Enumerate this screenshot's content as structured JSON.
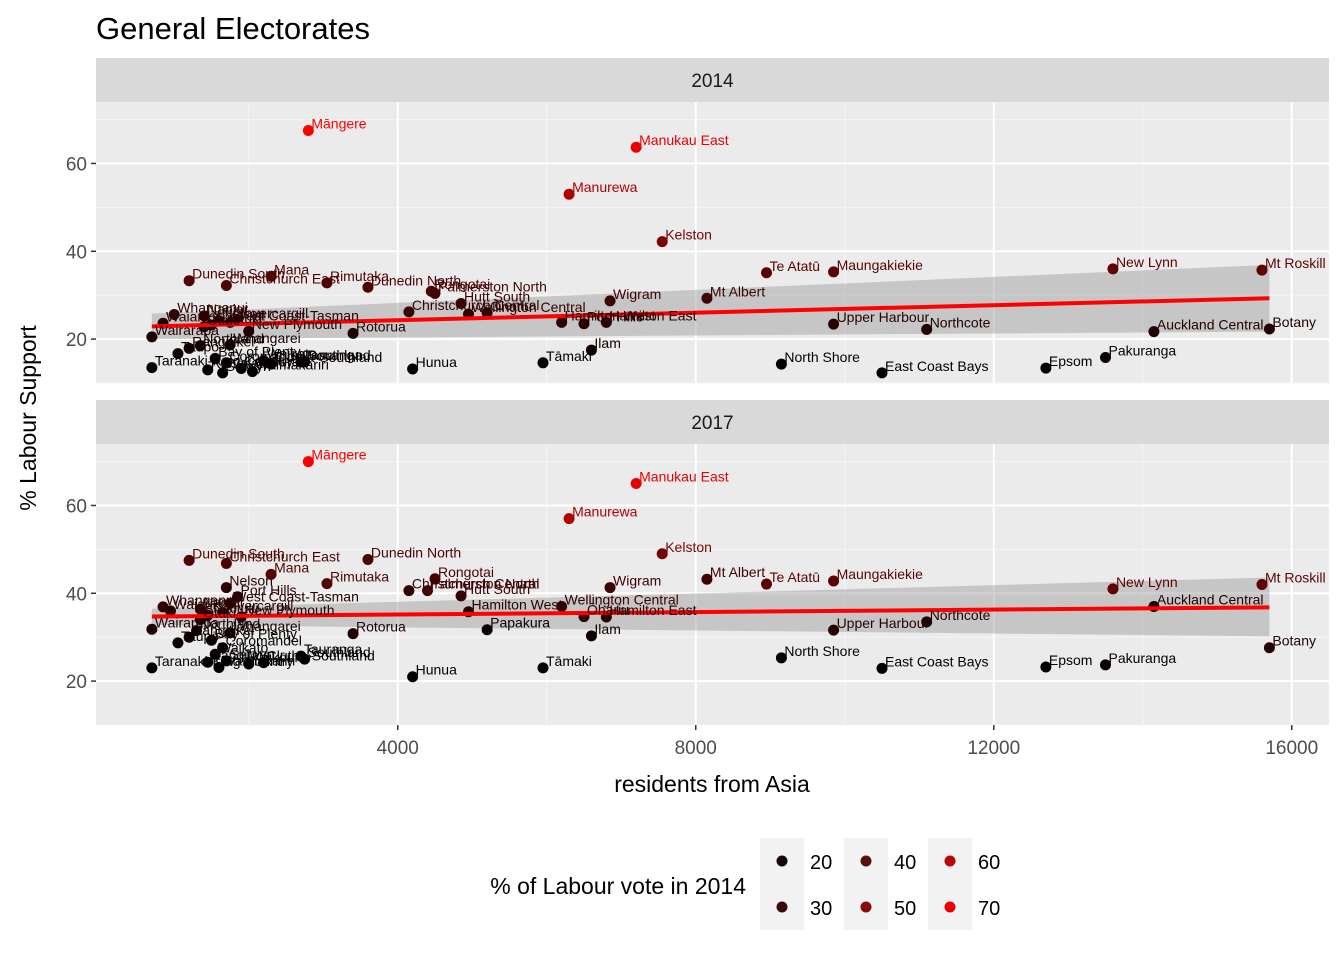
{
  "chart_data": {
    "type": "scatter",
    "title": "General Electorates",
    "xlabel": "residents from Asia",
    "ylabel": "% Labour Support",
    "xlim": [
      -50,
      16500
    ],
    "ylim": [
      10,
      74
    ],
    "x_ticks": [
      "4000",
      "8000",
      "12000",
      "16000"
    ],
    "x_tick_values": [
      4000,
      8000,
      12000,
      16000
    ],
    "y_ticks": [
      "20",
      "40",
      "60"
    ],
    "y_tick_values": [
      20,
      40,
      60
    ],
    "grid": true,
    "legend": {
      "title": "% of Labour vote in 2014",
      "placement": "bottom",
      "entries": [
        {
          "label": "20",
          "color": "#170606"
        },
        {
          "label": "30",
          "color": "#3b0b0b"
        },
        {
          "label": "40",
          "color": "#5e0d0d"
        },
        {
          "label": "50",
          "color": "#8a0b0b"
        },
        {
          "label": "60",
          "color": "#b80505"
        },
        {
          "label": "70",
          "color": "#ee0000"
        }
      ]
    },
    "color_scale": {
      "low": "#000000",
      "high": "#ff0000",
      "min": 12.6,
      "max": 68
    },
    "panels": [
      {
        "strip": "2014",
        "trend": {
          "x": [
            700,
            15700
          ],
          "y": [
            22.9,
            29.3
          ],
          "band_upper": [
            25.8,
            36.9
          ],
          "band_lower": [
            20.0,
            21.7
          ]
        },
        "points": [
          {
            "label": "Māngere",
            "x": 2800,
            "y": 67.5,
            "c": 67.5
          },
          {
            "label": "Manukau East",
            "x": 7200,
            "y": 63.7,
            "c": 63.7
          },
          {
            "label": "Manurewa",
            "x": 6300,
            "y": 53.0,
            "c": 53.0
          },
          {
            "label": "Kelston",
            "x": 7550,
            "y": 42.2,
            "c": 42.2
          },
          {
            "label": "Te Atatū",
            "x": 8950,
            "y": 35.1,
            "c": 35.1
          },
          {
            "label": "Maungakiekie",
            "x": 9850,
            "y": 35.3,
            "c": 35.3
          },
          {
            "label": "New Lynn",
            "x": 13600,
            "y": 36.0,
            "c": 36.0
          },
          {
            "label": "Mt Roskill",
            "x": 15600,
            "y": 35.7,
            "c": 35.7
          },
          {
            "label": "Mt Albert",
            "x": 8150,
            "y": 29.3,
            "c": 29.3
          },
          {
            "label": "Wigram",
            "x": 6850,
            "y": 28.7,
            "c": 28.7
          },
          {
            "label": "Dunedin South",
            "x": 1200,
            "y": 33.3,
            "c": 33.3
          },
          {
            "label": "Mana",
            "x": 2300,
            "y": 34.3,
            "c": 34.3
          },
          {
            "label": "Christchurch East",
            "x": 1700,
            "y": 32.2,
            "c": 32.2
          },
          {
            "label": "Rimutaka",
            "x": 3050,
            "y": 32.8,
            "c": 32.8
          },
          {
            "label": "Dunedin North",
            "x": 3600,
            "y": 31.8,
            "c": 31.8
          },
          {
            "label": "Rongotai",
            "x": 4450,
            "y": 30.9,
            "c": 30.9
          },
          {
            "label": "Palmerston North",
            "x": 4500,
            "y": 30.4,
            "c": 30.4
          },
          {
            "label": "Hutt South",
            "x": 4850,
            "y": 28.1,
            "c": 28.1
          },
          {
            "label": "Christchurch Central",
            "x": 4150,
            "y": 26.2,
            "c": 26.2
          },
          {
            "label": "Wellington Central",
            "x": 4950,
            "y": 25.7,
            "c": 25.7
          },
          {
            "label": "Ōhariu",
            "x": 5200,
            "y": 26.0,
            "c": 26.0
          },
          {
            "label": "Hamilton West",
            "x": 6200,
            "y": 23.8,
            "c": 23.8
          },
          {
            "label": "Port Hills",
            "x": 6500,
            "y": 23.5,
            "c": 23.5
          },
          {
            "label": "Hamilton East",
            "x": 6800,
            "y": 23.8,
            "c": 23.8
          },
          {
            "label": "Upper Harbour",
            "x": 9850,
            "y": 23.4,
            "c": 23.4
          },
          {
            "label": "Northcote",
            "x": 11100,
            "y": 22.2,
            "c": 22.2
          },
          {
            "label": "Auckland Central",
            "x": 14150,
            "y": 21.7,
            "c": 21.7
          },
          {
            "label": "Botany",
            "x": 15700,
            "y": 22.3,
            "c": 22.3
          },
          {
            "label": "Napier",
            "x": 1400,
            "y": 25.3,
            "c": 25.3
          },
          {
            "label": "Nelson",
            "x": 1600,
            "y": 24.2,
            "c": 24.2
          },
          {
            "label": "Whanganui",
            "x": 1000,
            "y": 25.6,
            "c": 25.6
          },
          {
            "label": "Invercargill",
            "x": 1850,
            "y": 24.4,
            "c": 24.4
          },
          {
            "label": "West Coast-Tasman",
            "x": 1750,
            "y": 23.8,
            "c": 23.8
          },
          {
            "label": "Tukituki",
            "x": 1500,
            "y": 23.2,
            "c": 23.2
          },
          {
            "label": "Ōtaki",
            "x": 1400,
            "y": 22.8,
            "c": 22.8
          },
          {
            "label": "New Plymouth",
            "x": 2000,
            "y": 21.8,
            "c": 21.8
          },
          {
            "label": "Rotorua",
            "x": 3400,
            "y": 21.3,
            "c": 21.3
          },
          {
            "label": "Waiariki",
            "x": 850,
            "y": 23.6,
            "c": 23.6
          },
          {
            "label": "Wairarapa",
            "x": 700,
            "y": 20.5,
            "c": 20.5
          },
          {
            "label": "Whangarei",
            "x": 1750,
            "y": 18.7,
            "c": 18.7
          },
          {
            "label": "Northland",
            "x": 1350,
            "y": 18.5,
            "c": 18.5
          },
          {
            "label": "Rangitīkei",
            "x": 1200,
            "y": 17.9,
            "c": 17.9
          },
          {
            "label": "Taupō",
            "x": 1050,
            "y": 16.7,
            "c": 16.7
          },
          {
            "label": "Bay of Plenty",
            "x": 1550,
            "y": 15.6,
            "c": 15.6
          },
          {
            "label": "Coromandel",
            "x": 1700,
            "y": 14.6,
            "c": 14.6
          },
          {
            "label": "Waikato",
            "x": 2200,
            "y": 15.1,
            "c": 15.1
          },
          {
            "label": "Tauranga",
            "x": 2700,
            "y": 14.8,
            "c": 14.8
          },
          {
            "label": "Clutha-Southland",
            "x": 2300,
            "y": 14.3,
            "c": 14.3
          },
          {
            "label": "Southland",
            "x": 2750,
            "y": 14.8,
            "c": 14.8
          },
          {
            "label": "Rangitata",
            "x": 1450,
            "y": 13.0,
            "c": 13.0
          },
          {
            "label": "Selwyn",
            "x": 1650,
            "y": 12.3,
            "c": 12.3
          },
          {
            "label": "Kaikōura",
            "x": 1900,
            "y": 13.3,
            "c": 13.3
          },
          {
            "label": "Waimakariri",
            "x": 2050,
            "y": 12.6,
            "c": 12.6
          },
          {
            "label": "Taranaki-King Country",
            "x": 700,
            "y": 13.5,
            "c": 13.5
          },
          {
            "label": "Hunua",
            "x": 4200,
            "y": 13.2,
            "c": 13.2
          },
          {
            "label": "Tāmaki",
            "x": 5950,
            "y": 14.6,
            "c": 14.6
          },
          {
            "label": "Ilam",
            "x": 6600,
            "y": 17.5,
            "c": 17.5
          },
          {
            "label": "North Shore",
            "x": 9150,
            "y": 14.3,
            "c": 14.3
          },
          {
            "label": "East Coast Bays",
            "x": 10500,
            "y": 12.3,
            "c": 12.3
          },
          {
            "label": "Epsom",
            "x": 12700,
            "y": 13.4,
            "c": 13.4
          },
          {
            "label": "Pakuranga",
            "x": 13500,
            "y": 15.8,
            "c": 15.8
          }
        ]
      },
      {
        "strip": "2017",
        "trend": {
          "x": [
            700,
            15700
          ],
          "y": [
            34.7,
            36.8
          ],
          "band_upper": [
            36.5,
            43.6
          ],
          "band_lower": [
            32.8,
            30.2
          ]
        },
        "points": [
          {
            "label": "Māngere",
            "x": 2800,
            "y": 70.0,
            "c": 67.5
          },
          {
            "label": "Manukau East",
            "x": 7200,
            "y": 65.0,
            "c": 63.7
          },
          {
            "label": "Manurewa",
            "x": 6300,
            "y": 57.0,
            "c": 53.0
          },
          {
            "label": "Kelston",
            "x": 7550,
            "y": 49.0,
            "c": 42.2
          },
          {
            "label": "Dunedin South",
            "x": 1200,
            "y": 47.5,
            "c": 33.3
          },
          {
            "label": "Christchurch East",
            "x": 1700,
            "y": 46.8,
            "c": 32.2
          },
          {
            "label": "Dunedin North",
            "x": 3600,
            "y": 47.7,
            "c": 31.8
          },
          {
            "label": "Mana",
            "x": 2300,
            "y": 44.3,
            "c": 34.3
          },
          {
            "label": "Rongotai",
            "x": 4500,
            "y": 43.3,
            "c": 30.9
          },
          {
            "label": "Mt Albert",
            "x": 8150,
            "y": 43.2,
            "c": 29.3
          },
          {
            "label": "Maungakiekie",
            "x": 9850,
            "y": 42.8,
            "c": 35.3
          },
          {
            "label": "Rimutaka",
            "x": 3050,
            "y": 42.2,
            "c": 32.8
          },
          {
            "label": "Te Atatū",
            "x": 8950,
            "y": 42.1,
            "c": 35.1
          },
          {
            "label": "Mt Roskill",
            "x": 15600,
            "y": 42.0,
            "c": 35.7
          },
          {
            "label": "Nelson",
            "x": 1700,
            "y": 41.3,
            "c": 24.2
          },
          {
            "label": "Wigram",
            "x": 6850,
            "y": 41.3,
            "c": 28.7
          },
          {
            "label": "New Lynn",
            "x": 13600,
            "y": 41.0,
            "c": 36.0
          },
          {
            "label": "Palmerston North",
            "x": 4400,
            "y": 40.6,
            "c": 30.4
          },
          {
            "label": "Christchurch Central",
            "x": 4150,
            "y": 40.6,
            "c": 26.2
          },
          {
            "label": "Hutt South",
            "x": 4850,
            "y": 39.4,
            "c": 28.1
          },
          {
            "label": "Port Hills",
            "x": 1850,
            "y": 39.2,
            "c": 23.5
          },
          {
            "label": "West Coast-Tasman",
            "x": 1750,
            "y": 37.7,
            "c": 23.8
          },
          {
            "label": "Wellington Central",
            "x": 6200,
            "y": 37.0,
            "c": 25.7
          },
          {
            "label": "Auckland Central",
            "x": 14150,
            "y": 37.0,
            "c": 21.7
          },
          {
            "label": "Whanganui",
            "x": 850,
            "y": 36.9,
            "c": 25.6
          },
          {
            "label": "Napier",
            "x": 1350,
            "y": 36.4,
            "c": 25.3
          },
          {
            "label": "Hamilton West",
            "x": 4950,
            "y": 35.8,
            "c": 23.8
          },
          {
            "label": "Ōhariu",
            "x": 6500,
            "y": 34.7,
            "c": 26.0
          },
          {
            "label": "Hamilton East",
            "x": 6800,
            "y": 34.6,
            "c": 23.8
          },
          {
            "label": "Invercargill",
            "x": 1650,
            "y": 35.6,
            "c": 24.4
          },
          {
            "label": "Tukituki",
            "x": 1450,
            "y": 35.0,
            "c": 23.2
          },
          {
            "label": "New Plymouth",
            "x": 1900,
            "y": 34.6,
            "c": 21.8
          },
          {
            "label": "Ōtaki",
            "x": 1350,
            "y": 34.0,
            "c": 22.8
          },
          {
            "label": "Northcote",
            "x": 11100,
            "y": 33.5,
            "c": 22.2
          },
          {
            "label": "Waiariki",
            "x": 950,
            "y": 36.0,
            "c": 23.6
          },
          {
            "label": "Wairarapa",
            "x": 700,
            "y": 31.8,
            "c": 20.5
          },
          {
            "label": "Upper Harbour",
            "x": 9850,
            "y": 31.6,
            "c": 23.4
          },
          {
            "label": "Whangarei",
            "x": 1750,
            "y": 31.0,
            "c": 18.7
          },
          {
            "label": "Rotorua",
            "x": 3400,
            "y": 30.8,
            "c": 21.3
          },
          {
            "label": "Northland",
            "x": 1300,
            "y": 31.5,
            "c": 18.5
          },
          {
            "label": "Rangitīkei",
            "x": 1200,
            "y": 30.0,
            "c": 17.9
          },
          {
            "label": "Papakura",
            "x": 5200,
            "y": 31.7,
            "c": 16.3
          },
          {
            "label": "Ilam",
            "x": 6600,
            "y": 30.3,
            "c": 17.5
          },
          {
            "label": "Taupō",
            "x": 1050,
            "y": 28.7,
            "c": 16.7
          },
          {
            "label": "Bay of Plenty",
            "x": 1500,
            "y": 29.3,
            "c": 15.6
          },
          {
            "label": "Coromandel",
            "x": 1650,
            "y": 27.6,
            "c": 14.6
          },
          {
            "label": "Waikato",
            "x": 1550,
            "y": 26.1,
            "c": 15.1
          },
          {
            "label": "Tauranga",
            "x": 2700,
            "y": 25.7,
            "c": 14.8
          },
          {
            "label": "North Shore",
            "x": 9150,
            "y": 25.3,
            "c": 14.3
          },
          {
            "label": "Rangitata",
            "x": 1450,
            "y": 24.3,
            "c": 13.0
          },
          {
            "label": "Selwyn",
            "x": 1700,
            "y": 24.6,
            "c": 12.3
          },
          {
            "label": "Clutha-Southland",
            "x": 2200,
            "y": 24.2,
            "c": 14.3
          },
          {
            "label": "Kaikōura",
            "x": 2000,
            "y": 23.9,
            "c": 13.3
          },
          {
            "label": "Southland",
            "x": 2750,
            "y": 25.0,
            "c": 14.8
          },
          {
            "label": "Waimakariri",
            "x": 1600,
            "y": 23.1,
            "c": 12.6
          },
          {
            "label": "Taranaki-King Country",
            "x": 700,
            "y": 23.0,
            "c": 13.5
          },
          {
            "label": "Tāmaki",
            "x": 5950,
            "y": 23.0,
            "c": 14.6
          },
          {
            "label": "East Coast Bays",
            "x": 10500,
            "y": 22.9,
            "c": 12.3
          },
          {
            "label": "Epsom",
            "x": 12700,
            "y": 23.2,
            "c": 13.4
          },
          {
            "label": "Pakuranga",
            "x": 13500,
            "y": 23.7,
            "c": 15.8
          },
          {
            "label": "Botany",
            "x": 15700,
            "y": 27.6,
            "c": 22.3
          },
          {
            "label": "Hunua",
            "x": 4200,
            "y": 21.0,
            "c": 13.2
          }
        ]
      }
    ]
  }
}
